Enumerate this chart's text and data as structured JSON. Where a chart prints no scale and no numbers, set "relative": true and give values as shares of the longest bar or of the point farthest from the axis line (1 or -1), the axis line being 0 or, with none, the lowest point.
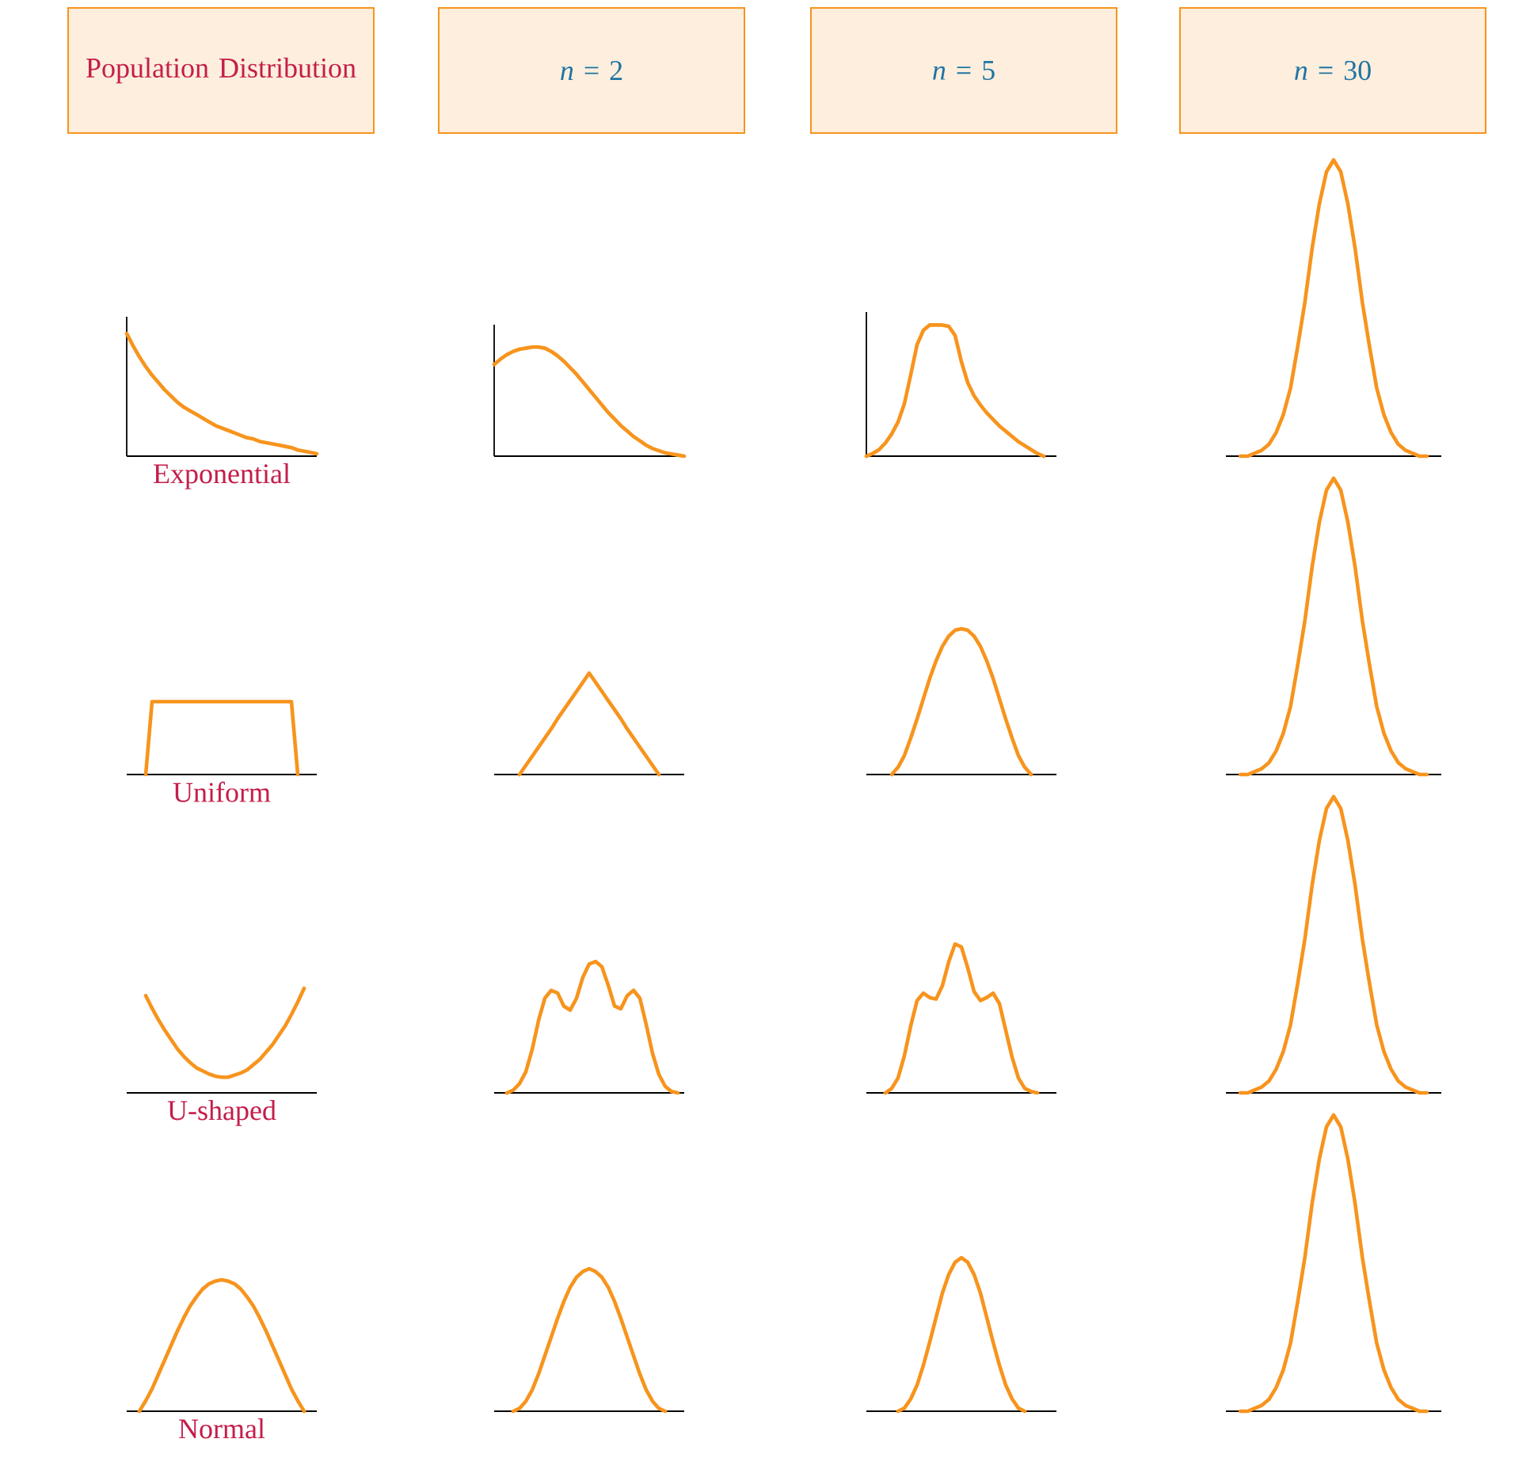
{
  "chart_data": [
    {
      "type": "line",
      "relative": true,
      "title": "Population Distribution",
      "xlabel": "Exponential",
      "color": "#f7941d",
      "categories": [
        null,
        null,
        null,
        null,
        null,
        null,
        null,
        null,
        null,
        null,
        null,
        null,
        null,
        null,
        null,
        null,
        null,
        null,
        null,
        null,
        null,
        null,
        null,
        null,
        null,
        null,
        null,
        null,
        null,
        null,
        null
      ],
      "values": [
        1.0,
        0.9,
        0.81,
        0.73,
        0.66,
        0.6,
        0.54,
        0.49,
        0.44,
        0.4,
        0.37,
        0.34,
        0.31,
        0.28,
        0.25,
        0.23,
        0.21,
        0.19,
        0.17,
        0.15,
        0.14,
        0.12,
        0.11,
        0.1,
        0.09,
        0.08,
        0.07,
        0.05,
        0.04,
        0.03,
        0.02
      ]
    },
    {
      "type": "line",
      "relative": true,
      "title": "*n* = 2",
      "color": "#f7941d",
      "categories": [
        null,
        null,
        null,
        null,
        null,
        null,
        null,
        null,
        null,
        null,
        null,
        null,
        null,
        null,
        null,
        null,
        null,
        null,
        null,
        null,
        null,
        null,
        null,
        null,
        null,
        null,
        null,
        null,
        null,
        null,
        null
      ],
      "values": [
        0.84,
        0.89,
        0.93,
        0.96,
        0.98,
        0.99,
        1.0,
        1.0,
        0.99,
        0.96,
        0.92,
        0.87,
        0.81,
        0.75,
        0.68,
        0.61,
        0.54,
        0.47,
        0.4,
        0.34,
        0.28,
        0.23,
        0.18,
        0.14,
        0.1,
        0.07,
        0.05,
        0.03,
        0.02,
        0.01,
        0
      ]
    },
    {
      "type": "line",
      "relative": true,
      "title": "*n* = 5",
      "color": "#f7941d",
      "categories": [
        null,
        null,
        null,
        null,
        null,
        null,
        null,
        null,
        null,
        null,
        null,
        null,
        null,
        null,
        null,
        null,
        null,
        null,
        null,
        null,
        null,
        null,
        null,
        null,
        null,
        null,
        null,
        null,
        null,
        null,
        null
      ],
      "values": [
        0,
        0.02,
        0.05,
        0.1,
        0.17,
        0.26,
        0.4,
        0.62,
        0.85,
        0.96,
        1.0,
        1.0,
        1.0,
        0.99,
        0.92,
        0.72,
        0.56,
        0.46,
        0.39,
        0.33,
        0.28,
        0.23,
        0.19,
        0.15,
        0.11,
        0.08,
        0.05,
        0.02,
        0,
        null,
        null
      ]
    },
    {
      "type": "line",
      "relative": true,
      "title": "*n* = 30",
      "color": "#f7941d",
      "categories": [
        null,
        null,
        null,
        null,
        null,
        null,
        null,
        null,
        null,
        null,
        null,
        null,
        null,
        null,
        null,
        null,
        null,
        null,
        null,
        null,
        null,
        null,
        null,
        null,
        null,
        null,
        null,
        null,
        null,
        null,
        null
      ],
      "values": [
        null,
        null,
        0,
        0,
        0.01,
        0.02,
        0.04,
        0.08,
        0.14,
        0.23,
        0.37,
        0.52,
        0.7,
        0.85,
        0.96,
        1,
        0.96,
        0.85,
        0.7,
        0.52,
        0.37,
        0.23,
        0.14,
        0.08,
        0.04,
        0.02,
        0.01,
        0,
        0,
        null,
        null
      ]
    },
    {
      "type": "line",
      "relative": true,
      "xlabel": "Uniform",
      "color": "#f7941d",
      "categories": [
        null,
        null,
        null,
        null,
        null,
        null,
        null,
        null,
        null,
        null,
        null,
        null,
        null,
        null,
        null,
        null,
        null,
        null,
        null,
        null,
        null,
        null,
        null,
        null,
        null,
        null,
        null,
        null,
        null,
        null,
        null
      ],
      "values": [
        null,
        null,
        null,
        0,
        1,
        1,
        1,
        1,
        1,
        1,
        1,
        1,
        1,
        1,
        1,
        1,
        1,
        1,
        1,
        1,
        1,
        1,
        1,
        1,
        1,
        1,
        1,
        0,
        null,
        null,
        null
      ]
    },
    {
      "type": "line",
      "relative": true,
      "color": "#f7941d",
      "categories": [
        null,
        null,
        null,
        null,
        null,
        null,
        null,
        null,
        null,
        null,
        null,
        null,
        null,
        null,
        null,
        null,
        null,
        null,
        null,
        null,
        null,
        null,
        null,
        null,
        null,
        null,
        null,
        null,
        null,
        null,
        null
      ],
      "values": [
        null,
        null,
        null,
        null,
        0,
        0.09,
        0.18,
        0.27,
        0.36,
        0.45,
        0.55,
        0.64,
        0.73,
        0.82,
        0.91,
        1,
        0.91,
        0.82,
        0.73,
        0.64,
        0.55,
        0.45,
        0.36,
        0.27,
        0.18,
        0.09,
        0,
        null,
        null,
        null,
        null
      ]
    },
    {
      "type": "line",
      "relative": true,
      "color": "#f7941d",
      "categories": [
        null,
        null,
        null,
        null,
        null,
        null,
        null,
        null,
        null,
        null,
        null,
        null,
        null,
        null,
        null,
        null,
        null,
        null,
        null,
        null,
        null,
        null,
        null,
        null,
        null,
        null,
        null,
        null,
        null,
        null,
        null
      ],
      "values": [
        null,
        null,
        null,
        null,
        0,
        0.05,
        0.13,
        0.25,
        0.38,
        0.52,
        0.66,
        0.78,
        0.88,
        0.95,
        0.99,
        1,
        0.99,
        0.95,
        0.88,
        0.78,
        0.66,
        0.52,
        0.38,
        0.25,
        0.13,
        0.05,
        0,
        null,
        null,
        null,
        null
      ]
    },
    {
      "type": "line",
      "relative": true,
      "color": "#f7941d",
      "categories": [
        null,
        null,
        null,
        null,
        null,
        null,
        null,
        null,
        null,
        null,
        null,
        null,
        null,
        null,
        null,
        null,
        null,
        null,
        null,
        null,
        null,
        null,
        null,
        null,
        null,
        null,
        null,
        null,
        null,
        null,
        null
      ],
      "values": [
        null,
        null,
        0,
        0,
        0.01,
        0.02,
        0.04,
        0.08,
        0.14,
        0.23,
        0.37,
        0.52,
        0.7,
        0.85,
        0.96,
        1,
        0.96,
        0.85,
        0.7,
        0.52,
        0.37,
        0.23,
        0.14,
        0.08,
        0.04,
        0.02,
        0.01,
        0,
        0,
        null,
        null
      ]
    },
    {
      "type": "line",
      "relative": true,
      "xlabel": "U-shaped",
      "color": "#f7941d",
      "categories": [
        null,
        null,
        null,
        null,
        null,
        null,
        null,
        null,
        null,
        null,
        null,
        null,
        null,
        null,
        null,
        null,
        null,
        null,
        null,
        null,
        null,
        null,
        null,
        null,
        null,
        null,
        null,
        null,
        null,
        null,
        null
      ],
      "values": [
        null,
        null,
        null,
        0.93,
        0.81,
        0.7,
        0.6,
        0.51,
        0.42,
        0.35,
        0.29,
        0.24,
        0.21,
        0.18,
        0.16,
        0.15,
        0.15,
        0.17,
        0.19,
        0.22,
        0.27,
        0.32,
        0.39,
        0.46,
        0.55,
        0.64,
        0.75,
        0.87,
        1.0,
        null,
        null
      ]
    },
    {
      "type": "line",
      "relative": true,
      "color": "#f7941d",
      "categories": [
        null,
        null,
        null,
        null,
        null,
        null,
        null,
        null,
        null,
        null,
        null,
        null,
        null,
        null,
        null,
        null,
        null,
        null,
        null,
        null,
        null,
        null,
        null,
        null,
        null,
        null,
        null,
        null,
        null,
        null,
        null
      ],
      "values": [
        null,
        null,
        0,
        0.02,
        0.07,
        0.16,
        0.33,
        0.55,
        0.72,
        0.78,
        0.76,
        0.66,
        0.63,
        0.72,
        0.88,
        0.98,
        1.0,
        0.96,
        0.82,
        0.66,
        0.64,
        0.74,
        0.78,
        0.72,
        0.52,
        0.3,
        0.14,
        0.05,
        0.01,
        0,
        null
      ]
    },
    {
      "type": "line",
      "relative": true,
      "color": "#f7941d",
      "categories": [
        null,
        null,
        null,
        null,
        null,
        null,
        null,
        null,
        null,
        null,
        null,
        null,
        null,
        null,
        null,
        null,
        null,
        null,
        null,
        null,
        null,
        null,
        null,
        null,
        null,
        null,
        null,
        null,
        null,
        null,
        null
      ],
      "values": [
        null,
        null,
        null,
        0,
        0.03,
        0.1,
        0.25,
        0.45,
        0.62,
        0.67,
        0.64,
        0.63,
        0.72,
        0.88,
        1.0,
        0.98,
        0.84,
        0.68,
        0.62,
        0.64,
        0.67,
        0.6,
        0.42,
        0.24,
        0.1,
        0.03,
        0.01,
        0,
        null,
        null,
        null
      ]
    },
    {
      "type": "line",
      "relative": true,
      "color": "#f7941d",
      "categories": [
        null,
        null,
        null,
        null,
        null,
        null,
        null,
        null,
        null,
        null,
        null,
        null,
        null,
        null,
        null,
        null,
        null,
        null,
        null,
        null,
        null,
        null,
        null,
        null,
        null,
        null,
        null,
        null,
        null,
        null,
        null
      ],
      "values": [
        null,
        null,
        0,
        0,
        0.01,
        0.02,
        0.04,
        0.08,
        0.14,
        0.23,
        0.37,
        0.52,
        0.7,
        0.85,
        0.96,
        1,
        0.96,
        0.85,
        0.7,
        0.52,
        0.37,
        0.23,
        0.14,
        0.08,
        0.04,
        0.02,
        0.01,
        0,
        0,
        null,
        null
      ]
    },
    {
      "type": "line",
      "relative": true,
      "xlabel": "Normal",
      "color": "#f7941d",
      "categories": [
        null,
        null,
        null,
        null,
        null,
        null,
        null,
        null,
        null,
        null,
        null,
        null,
        null,
        null,
        null,
        null,
        null,
        null,
        null,
        null,
        null,
        null,
        null,
        null,
        null,
        null,
        null,
        null,
        null,
        null,
        null
      ],
      "values": [
        null,
        null,
        0,
        0.08,
        0.17,
        0.28,
        0.39,
        0.5,
        0.61,
        0.71,
        0.8,
        0.87,
        0.93,
        0.97,
        0.99,
        1.0,
        0.99,
        0.97,
        0.93,
        0.87,
        0.8,
        0.71,
        0.61,
        0.5,
        0.39,
        0.28,
        0.17,
        0.08,
        0,
        null,
        null
      ]
    },
    {
      "type": "line",
      "relative": true,
      "color": "#f7941d",
      "categories": [
        null,
        null,
        null,
        null,
        null,
        null,
        null,
        null,
        null,
        null,
        null,
        null,
        null,
        null,
        null,
        null,
        null,
        null,
        null,
        null,
        null,
        null,
        null,
        null,
        null,
        null,
        null,
        null,
        null,
        null,
        null
      ],
      "values": [
        null,
        null,
        null,
        0,
        0.02,
        0.07,
        0.15,
        0.26,
        0.39,
        0.52,
        0.65,
        0.77,
        0.87,
        0.94,
        0.98,
        1.0,
        0.98,
        0.94,
        0.87,
        0.77,
        0.65,
        0.52,
        0.39,
        0.26,
        0.15,
        0.07,
        0.02,
        0,
        null,
        null,
        null
      ]
    },
    {
      "type": "line",
      "relative": true,
      "color": "#f7941d",
      "categories": [
        null,
        null,
        null,
        null,
        null,
        null,
        null,
        null,
        null,
        null,
        null,
        null,
        null,
        null,
        null,
        null,
        null,
        null,
        null,
        null,
        null,
        null,
        null,
        null,
        null,
        null,
        null,
        null,
        null,
        null,
        null
      ],
      "values": [
        null,
        null,
        null,
        null,
        null,
        0,
        0.02,
        0.08,
        0.17,
        0.3,
        0.45,
        0.61,
        0.77,
        0.89,
        0.97,
        1.0,
        0.97,
        0.89,
        0.77,
        0.61,
        0.45,
        0.3,
        0.17,
        0.08,
        0.02,
        0,
        null,
        null,
        null,
        null,
        null
      ]
    },
    {
      "type": "line",
      "relative": true,
      "color": "#f7941d",
      "categories": [
        null,
        null,
        null,
        null,
        null,
        null,
        null,
        null,
        null,
        null,
        null,
        null,
        null,
        null,
        null,
        null,
        null,
        null,
        null,
        null,
        null,
        null,
        null,
        null,
        null,
        null,
        null,
        null,
        null,
        null,
        null
      ],
      "values": [
        null,
        null,
        0,
        0,
        0.01,
        0.02,
        0.04,
        0.08,
        0.14,
        0.23,
        0.37,
        0.52,
        0.7,
        0.85,
        0.96,
        1,
        0.96,
        0.85,
        0.7,
        0.52,
        0.37,
        0.23,
        0.14,
        0.08,
        0.04,
        0.02,
        0.01,
        0,
        0,
        null,
        null
      ]
    }
  ]
}
